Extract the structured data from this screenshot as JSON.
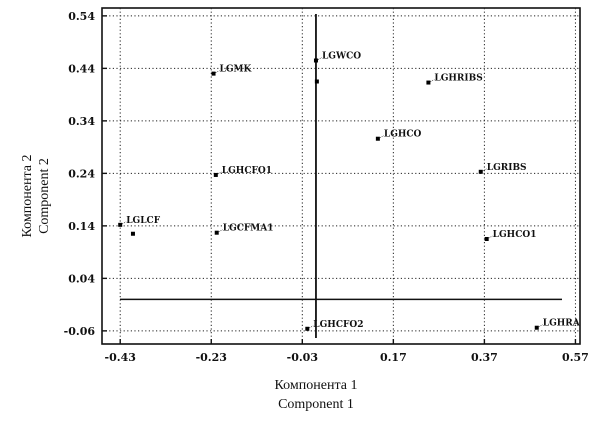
{
  "chart_data": {
    "type": "scatter",
    "title": "",
    "xlabel_lines": [
      "Компонента 1",
      "Component   1"
    ],
    "ylabel_lines": [
      "Компонента 2",
      "Component   2"
    ],
    "xlim": [
      -0.47,
      0.58
    ],
    "ylim": [
      -0.085,
      0.555
    ],
    "x_ticks": [
      -0.43,
      -0.23,
      -0.03,
      0.17,
      0.37,
      0.57
    ],
    "x_tick_labels": [
      "-0.43",
      "-0.23",
      "-0.03",
      "0.17",
      "0.37",
      "0.57"
    ],
    "y_ticks": [
      -0.06,
      0.04,
      0.14,
      0.24,
      0.34,
      0.44,
      0.54
    ],
    "y_tick_labels": [
      "-0.06",
      "0.04",
      "0.14",
      "0.24",
      "0.34",
      "0.44",
      "0.54"
    ],
    "grid": true,
    "grid_style": "dotted",
    "reference_lines": {
      "vertical_x": 0.0,
      "horizontal_y": 0.0
    },
    "points": [
      {
        "label": "LGMK",
        "x": -0.225,
        "y": 0.43
      },
      {
        "label": "LGWCO",
        "x": 0.0,
        "y": 0.455
      },
      {
        "label": "",
        "x": 0.002,
        "y": 0.415
      },
      {
        "label": "LGHRIBS",
        "x": 0.247,
        "y": 0.413
      },
      {
        "label": "LGHCO",
        "x": 0.136,
        "y": 0.306
      },
      {
        "label": "LGHCFO1",
        "x": -0.22,
        "y": 0.237
      },
      {
        "label": "LGRIBS",
        "x": 0.362,
        "y": 0.243
      },
      {
        "label": "LGLCF",
        "x": -0.43,
        "y": 0.142
      },
      {
        "label": "",
        "x": -0.402,
        "y": 0.125
      },
      {
        "label": "LGCFMA1",
        "x": -0.218,
        "y": 0.127
      },
      {
        "label": "LGHCO1",
        "x": 0.375,
        "y": 0.115
      },
      {
        "label": "LGHCFO2",
        "x": -0.019,
        "y": -0.056
      },
      {
        "label": "LGHRA",
        "x": 0.485,
        "y": -0.054
      }
    ]
  }
}
